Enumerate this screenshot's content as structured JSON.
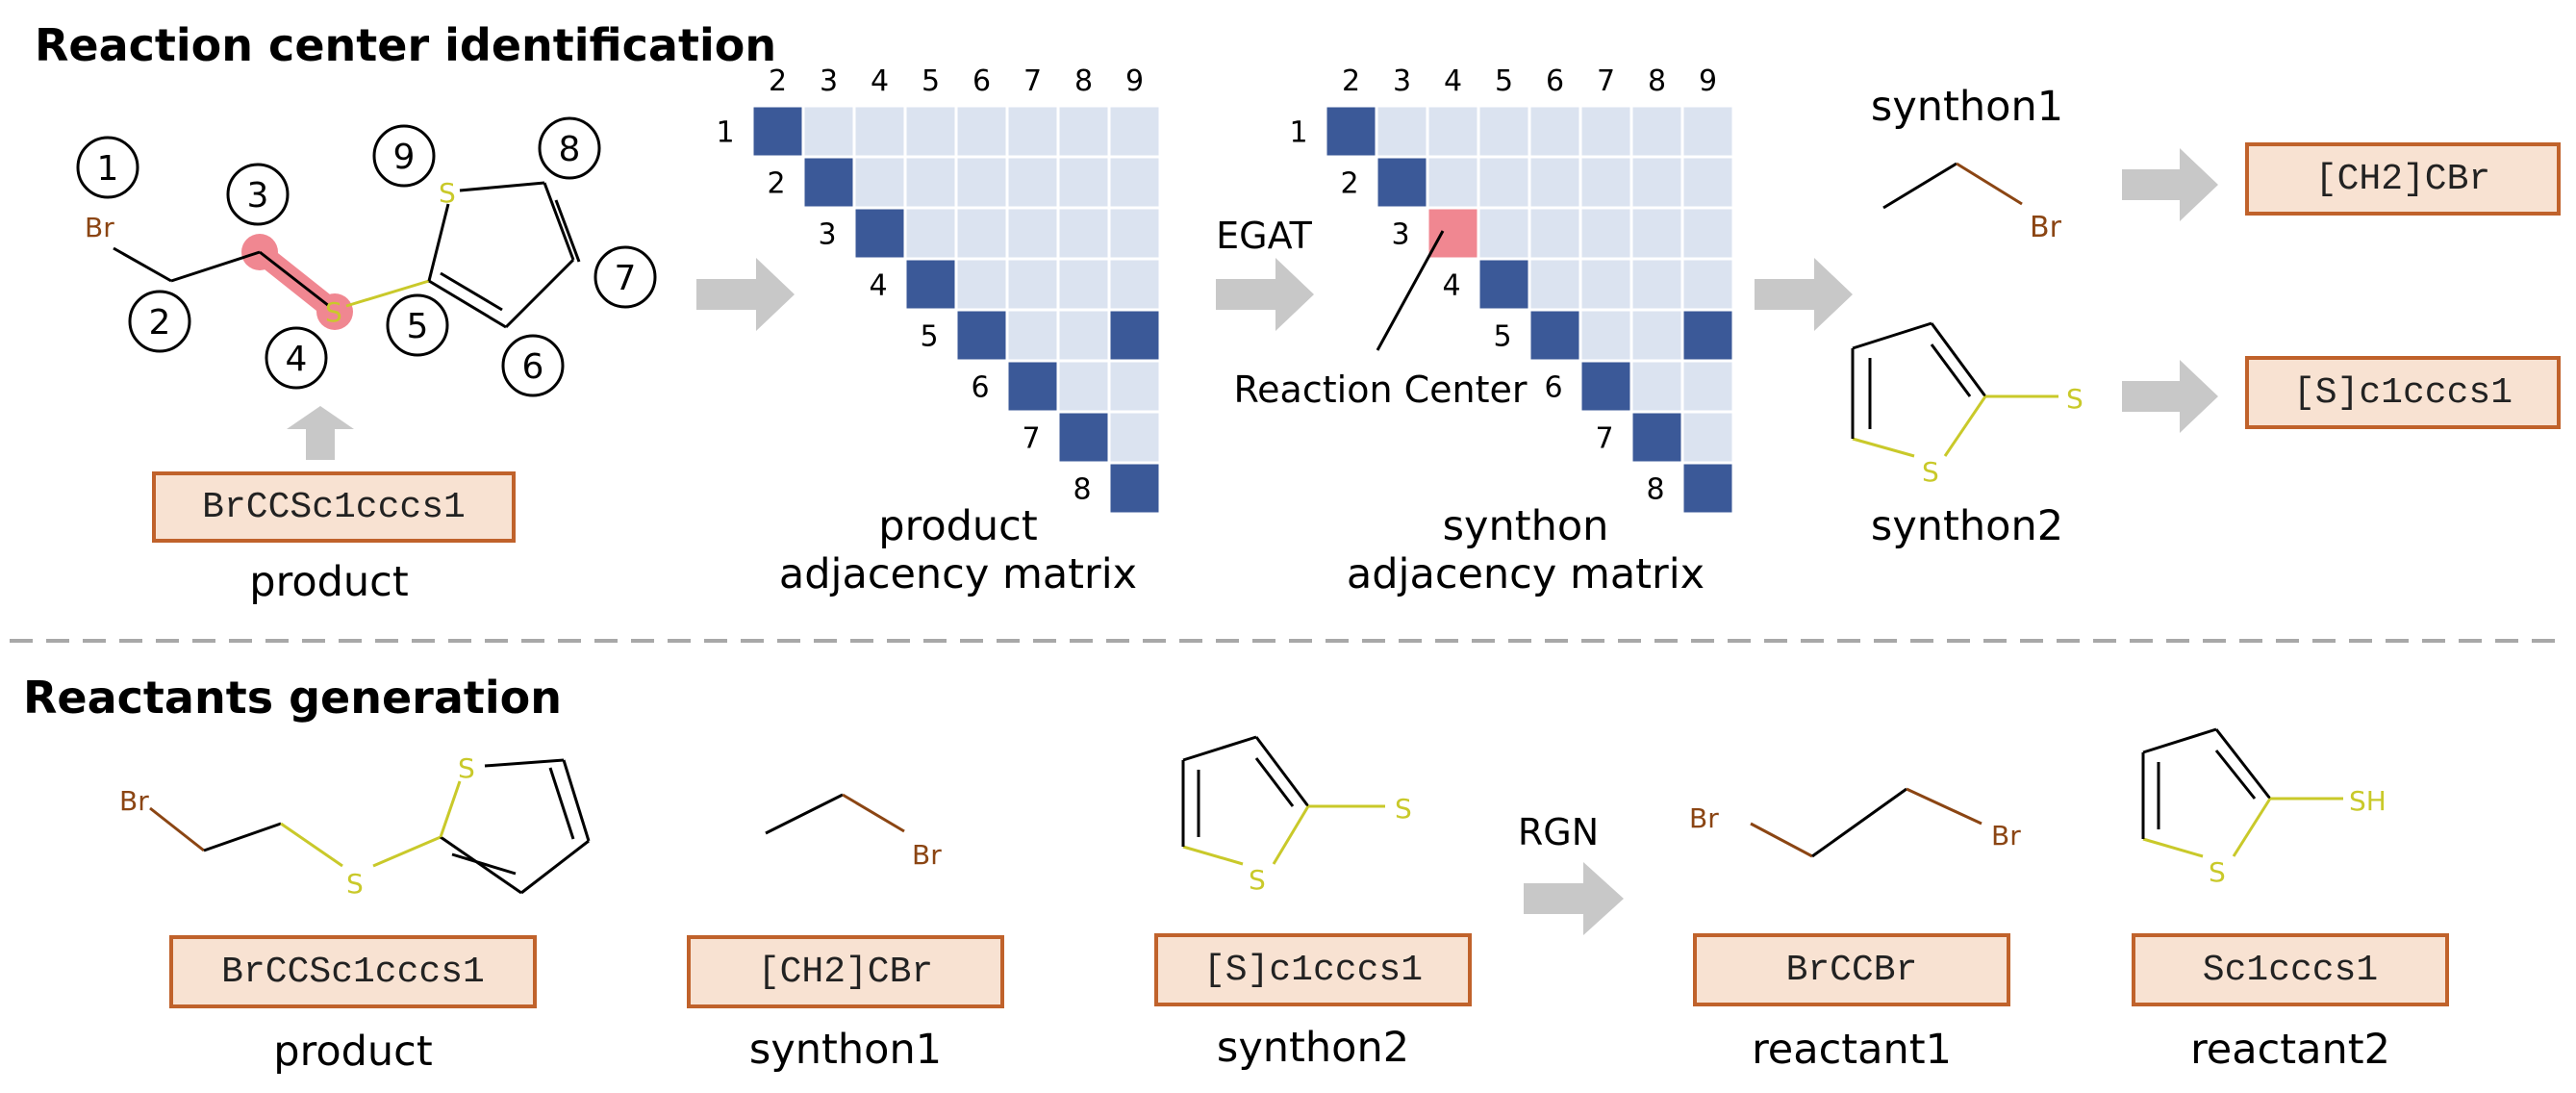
{
  "sections": {
    "top_title": "Reaction center identification",
    "bottom_title": "Reactants generation"
  },
  "top": {
    "product_label": "product",
    "product_smiles": "BrCCSc1cccs1",
    "atom_numbers": [
      "1",
      "2",
      "3",
      "4",
      "5",
      "6",
      "7",
      "8",
      "9"
    ],
    "product_matrix_title_1": "product",
    "product_matrix_title_2": "adjacency matrix",
    "synthon_matrix_title_1": "synthon",
    "synthon_matrix_title_2": "adjacency matrix",
    "egat_label": "EGAT",
    "reaction_center_label": "Reaction Center",
    "synthon1_label": "synthon1",
    "synthon2_label": "synthon2",
    "synthon1_smiles": "[CH2]CBr",
    "synthon2_smiles": "[S]c1cccs1",
    "col_numbers": [
      "2",
      "3",
      "4",
      "5",
      "6",
      "7",
      "8",
      "9"
    ],
    "row_numbers": [
      "1",
      "2",
      "3",
      "4",
      "5",
      "6",
      "7",
      "8"
    ]
  },
  "bottom": {
    "rgn_label": "RGN",
    "items": [
      {
        "smiles": "BrCCSc1cccs1",
        "label": "product"
      },
      {
        "smiles": "[CH2]CBr",
        "label": "synthon1"
      },
      {
        "smiles": "[S]c1cccs1",
        "label": "synthon2"
      },
      {
        "smiles": "BrCCBr",
        "label": "reactant1"
      },
      {
        "smiles": "Sc1cccs1",
        "label": "reactant2"
      }
    ]
  },
  "atoms": {
    "br": "Br",
    "s": "S",
    "sh": "SH"
  },
  "colors": {
    "bond_filled": "#3b5998",
    "bond_empty": "#dbe3f0",
    "reaction_center": "#f08791",
    "sulfur": "#c9c92a",
    "bromine": "#8b4513",
    "arrow": "#c8c8c8",
    "smiles_border": "#c0622b",
    "smiles_fill": "#f8e2d2"
  },
  "matrices": {
    "product_bonds": [
      [
        1,
        2
      ],
      [
        2,
        3
      ],
      [
        3,
        4
      ],
      [
        4,
        5
      ],
      [
        5,
        6
      ],
      [
        5,
        9
      ],
      [
        6,
        7
      ],
      [
        7,
        8
      ],
      [
        8,
        9
      ]
    ],
    "synthon_bonds": [
      [
        1,
        2
      ],
      [
        2,
        3
      ],
      [
        4,
        5
      ],
      [
        5,
        6
      ],
      [
        5,
        9
      ],
      [
        6,
        7
      ],
      [
        7,
        8
      ],
      [
        8,
        9
      ]
    ],
    "reaction_center": [
      [
        3,
        4
      ]
    ]
  }
}
